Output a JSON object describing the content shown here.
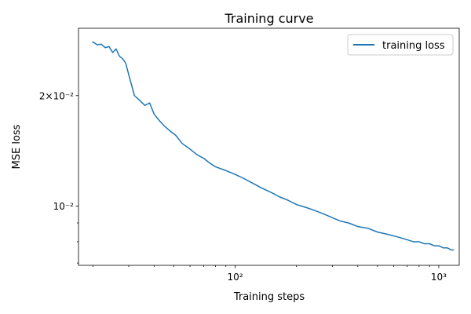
{
  "chart_data": {
    "type": "line",
    "title": "Training curve",
    "xlabel": "Training steps",
    "ylabel": "MSE loss",
    "x_scale": "log",
    "y_scale": "log",
    "xlim": [
      17,
      1260
    ],
    "ylim": [
      0.0069,
      0.0305
    ],
    "grid": false,
    "legend_position": "top-right",
    "x_major_ticks": [
      {
        "value": 100,
        "label": "10²"
      },
      {
        "value": 1000,
        "label": "10³"
      }
    ],
    "x_minor_ticks": [
      20,
      30,
      40,
      50,
      60,
      70,
      80,
      90,
      200,
      300,
      400,
      500,
      600,
      700,
      800,
      900
    ],
    "y_major_ticks": [
      {
        "value": 0.01,
        "label": "10⁻²"
      },
      {
        "value": 0.02,
        "label": "2×10⁻²"
      }
    ],
    "y_minor_ticks": [
      0.007,
      0.008,
      0.009
    ],
    "series": [
      {
        "name": "training loss",
        "color": "#1f77b4",
        "x": [
          20,
          21,
          22,
          23,
          24,
          25,
          26,
          27,
          28,
          29,
          30,
          32,
          34,
          36,
          38,
          40,
          42,
          45,
          48,
          51,
          55,
          60,
          65,
          70,
          75,
          80,
          90,
          100,
          110,
          120,
          135,
          150,
          165,
          180,
          200,
          225,
          250,
          275,
          300,
          330,
          360,
          400,
          450,
          500,
          550,
          600,
          650,
          700,
          750,
          800,
          850,
          900,
          950,
          1000,
          1050,
          1100,
          1150,
          1180
        ],
        "y": [
          0.028,
          0.0275,
          0.0276,
          0.027,
          0.0272,
          0.0262,
          0.0268,
          0.0256,
          0.0252,
          0.0245,
          0.0228,
          0.02,
          0.0194,
          0.0188,
          0.0191,
          0.0178,
          0.0172,
          0.0165,
          0.016,
          0.0156,
          0.0148,
          0.0143,
          0.0138,
          0.0135,
          0.0131,
          0.0128,
          0.0125,
          0.0122,
          0.0119,
          0.0116,
          0.0112,
          0.0109,
          0.0106,
          0.0104,
          0.0101,
          0.0099,
          0.0097,
          0.0095,
          0.0093,
          0.0091,
          0.009,
          0.0088,
          0.0087,
          0.0085,
          0.0084,
          0.0083,
          0.0082,
          0.0081,
          0.008,
          0.008,
          0.0079,
          0.0079,
          0.0078,
          0.0078,
          0.0077,
          0.0077,
          0.0076,
          0.0076
        ]
      }
    ]
  }
}
